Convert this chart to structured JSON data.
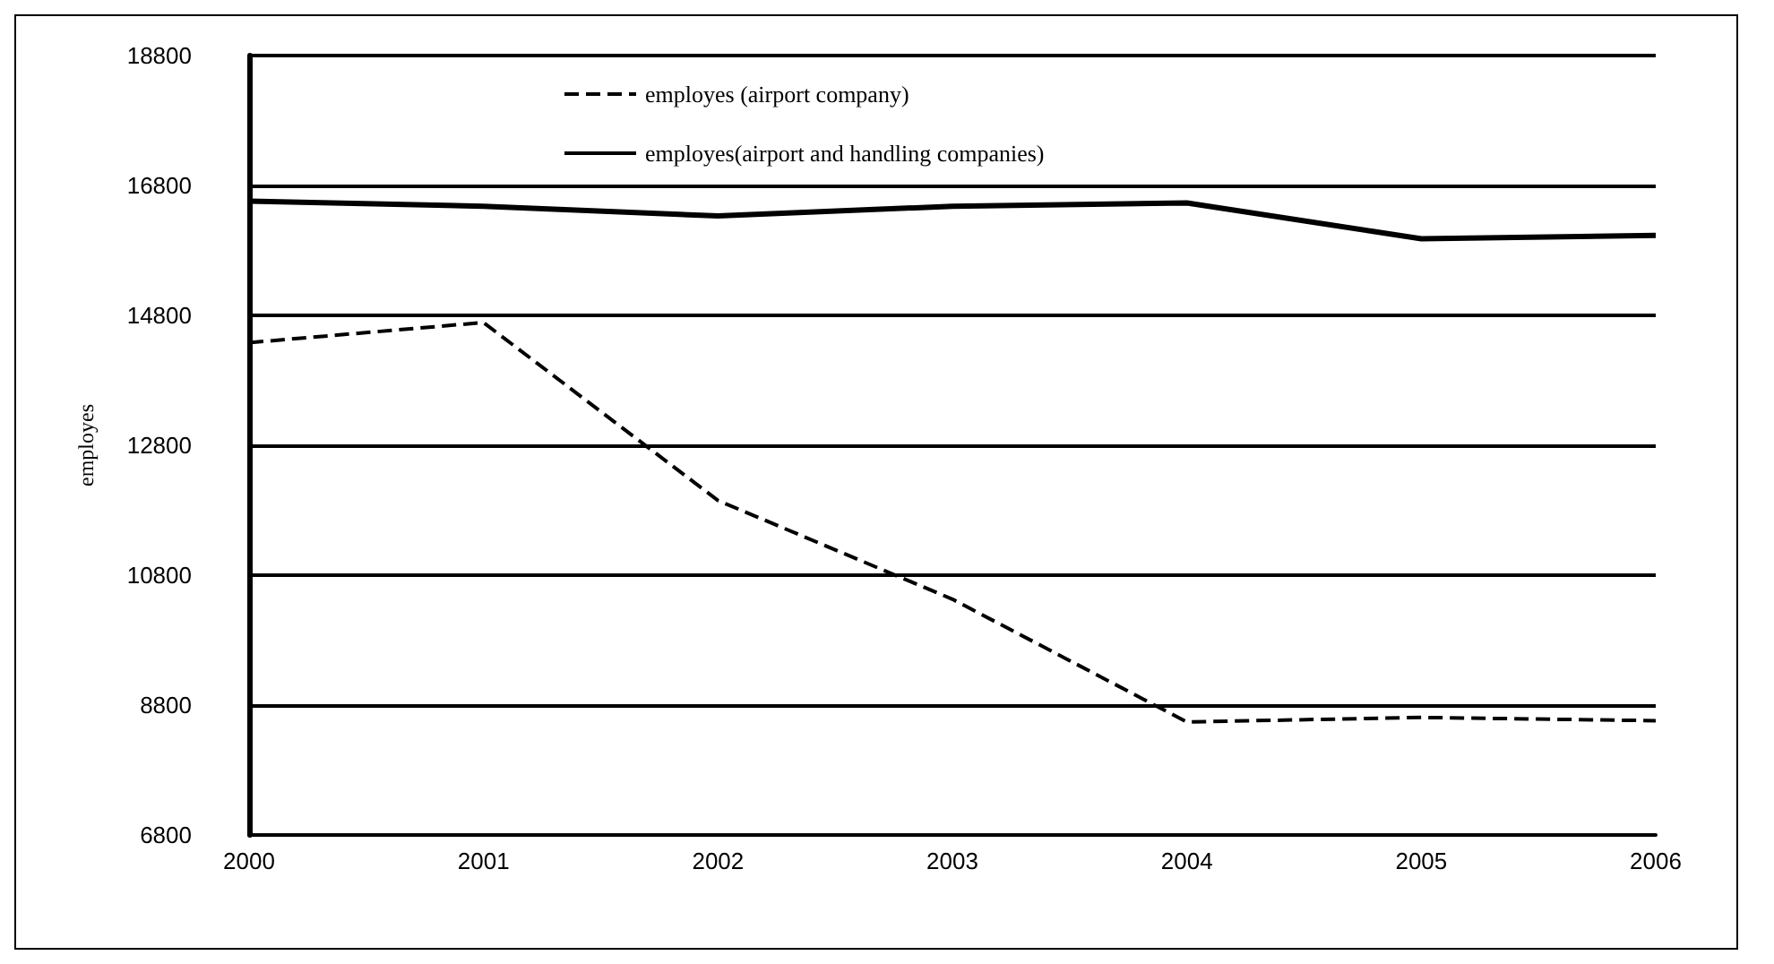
{
  "chart_data": {
    "type": "line",
    "ylabel": "employes",
    "categories": [
      "2000",
      "2001",
      "2002",
      "2003",
      "2004",
      "2005",
      "2006"
    ],
    "series": [
      {
        "name": "employes (airport company)",
        "color": "#000000",
        "line_style": "dashed",
        "values": [
          14380,
          14690,
          11950,
          10430,
          8540,
          8610,
          8560
        ]
      },
      {
        "name": "employes(airport and handling companies)",
        "color": "#000000",
        "line_style": "solid",
        "values": [
          16560,
          16480,
          16330,
          16480,
          16530,
          15980,
          16030
        ]
      }
    ],
    "ylim": [
      6800,
      18800
    ],
    "yticks": [
      6800,
      8800,
      10800,
      12800,
      14800,
      16800,
      18800
    ],
    "grid": "y",
    "legend": "top",
    "marker": "none"
  }
}
